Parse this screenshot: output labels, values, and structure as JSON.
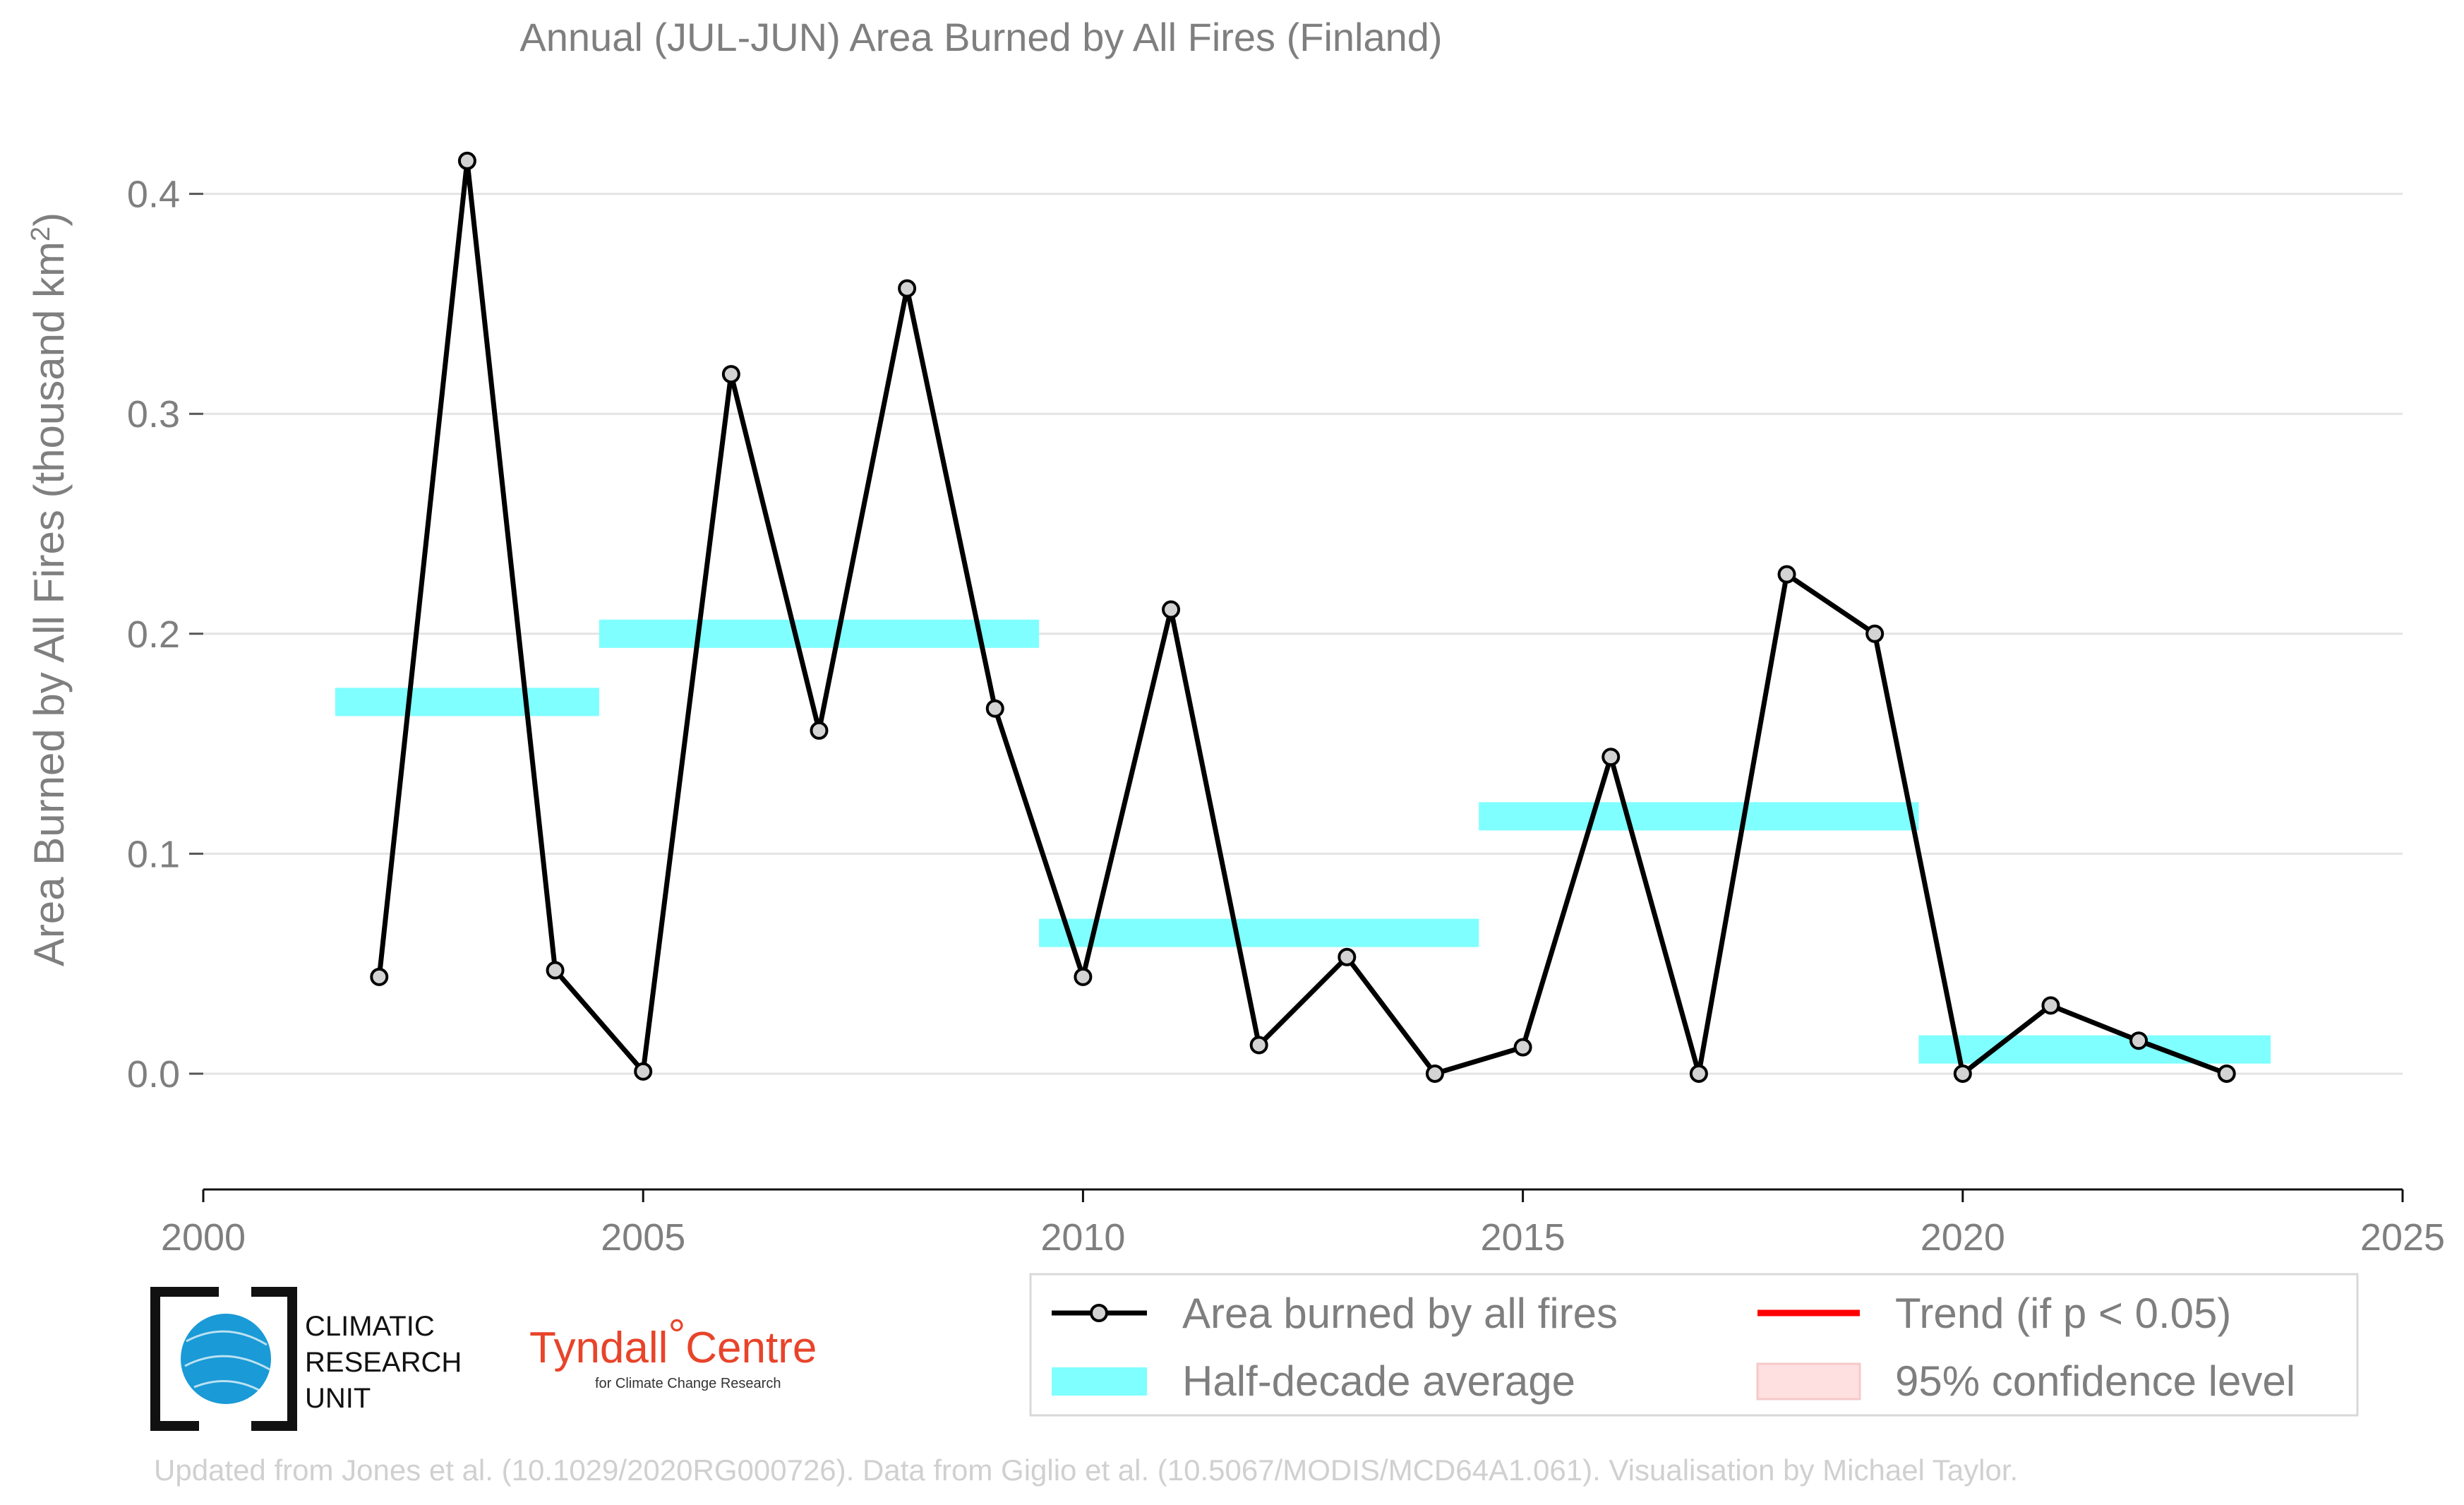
{
  "chart_data": {
    "type": "line",
    "title": "Annual (JUL-JUN) Area Burned by All Fires (Finland)",
    "ylabel_main": "Area Burned by All Fires (thousand km",
    "ylabel_sup": "2",
    "ylabel_end": ")",
    "xlim": [
      2000,
      2025
    ],
    "ylim": [
      -0.035,
      0.44
    ],
    "x_ticks": [
      2000,
      2005,
      2010,
      2015,
      2020,
      2025
    ],
    "x_tick_labels": [
      "2000",
      "2005",
      "2010",
      "2015",
      "2020",
      "2025"
    ],
    "y_ticks": [
      0.0,
      0.1,
      0.2,
      0.3,
      0.4
    ],
    "y_tick_labels": [
      "0.0",
      "0.1",
      "0.2",
      "0.3",
      "0.4"
    ],
    "grid": "horizontal",
    "legend_position": "bottom-right",
    "series": [
      {
        "name": "Area burned by all fires",
        "color": "#000000",
        "marker_fill": "#d3d3d3",
        "x": [
          2002,
          2003,
          2004,
          2005,
          2006,
          2007,
          2008,
          2009,
          2010,
          2011,
          2012,
          2013,
          2014,
          2015,
          2016,
          2017,
          2018,
          2019,
          2020,
          2021,
          2022,
          2023
        ],
        "y": [
          0.044,
          0.415,
          0.047,
          0.001,
          0.318,
          0.156,
          0.357,
          0.166,
          0.044,
          0.211,
          0.013,
          0.053,
          0.0,
          0.012,
          0.144,
          0.0,
          0.227,
          0.2,
          0.0,
          0.031,
          0.015,
          0.0
        ]
      }
    ],
    "half_decade_average": {
      "name": "Half-decade average",
      "color": "#7fffff",
      "segments": [
        {
          "x_start": 2001.5,
          "x_end": 2004.5,
          "value": 0.169
        },
        {
          "x_start": 2004.5,
          "x_end": 2009.5,
          "value": 0.2
        },
        {
          "x_start": 2009.5,
          "x_end": 2014.5,
          "value": 0.064
        },
        {
          "x_start": 2014.5,
          "x_end": 2019.5,
          "value": 0.117
        },
        {
          "x_start": 2019.5,
          "x_end": 2023.5,
          "value": 0.011
        }
      ]
    },
    "legend": [
      {
        "label": "Area burned by all fires",
        "kind": "line-marker",
        "color": "#000000"
      },
      {
        "label": "Trend (if p < 0.05)",
        "kind": "line",
        "color": "#ff0000"
      },
      {
        "label": "Half-decade average",
        "kind": "band",
        "color": "#7fffff"
      },
      {
        "label": "95% confidence level",
        "kind": "fill",
        "color": "#ffe0e0"
      }
    ]
  },
  "logos": {
    "cru_line1": "CLIMATIC",
    "cru_line2": "RESEARCH",
    "cru_line3": "UNIT",
    "tyndall_name": "Tyndall",
    "tyndall_degree": "°",
    "tyndall_centre": "Centre",
    "tyndall_sub": "for Climate Change Research",
    "cru_color": "#1a9ad6",
    "tyndall_color": "#e8442a"
  },
  "credit": "Updated from Jones et al. (10.1029/2020RG000726). Data from Giglio et al. (10.5067/MODIS/MCD64A1.061). Visualisation by Michael Taylor."
}
